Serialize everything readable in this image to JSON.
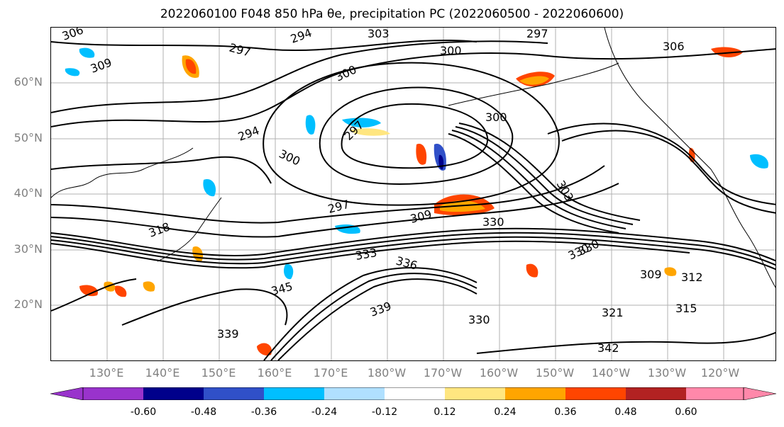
{
  "title": "2022060100 F048 850 hPa θe, precipitation PC (2022060500 - 2022060600)",
  "lat_labels": [
    "60°N",
    "50°N",
    "40°N",
    "30°N",
    "20°N"
  ],
  "lon_labels": [
    "130°E",
    "140°E",
    "150°E",
    "160°E",
    "170°E",
    "180°W",
    "170°W",
    "160°W",
    "150°W",
    "140°W",
    "130°W",
    "120°W"
  ],
  "contour_labels": [
    "306",
    "309",
    "297",
    "294",
    "303",
    "300",
    "297",
    "300",
    "306",
    "294",
    "300",
    "297",
    "300",
    "297",
    "309",
    "330",
    "318",
    "330",
    "333",
    "336",
    "345",
    "339",
    "339",
    "330",
    "321",
    "315",
    "312",
    "309",
    "342",
    "330",
    "303"
  ],
  "colorbar": {
    "ticks": [
      "-0.60",
      "-0.48",
      "-0.36",
      "-0.24",
      "-0.12",
      "0.12",
      "0.24",
      "0.36",
      "0.48",
      "0.60"
    ],
    "colors": [
      "#9933cc",
      "#00008b",
      "#3050c8",
      "#00bfff",
      "#b0e0ff",
      "#ffffff",
      "#ffe680",
      "#ffa500",
      "#ff4500",
      "#b22222",
      "#ff88aa"
    ]
  }
}
